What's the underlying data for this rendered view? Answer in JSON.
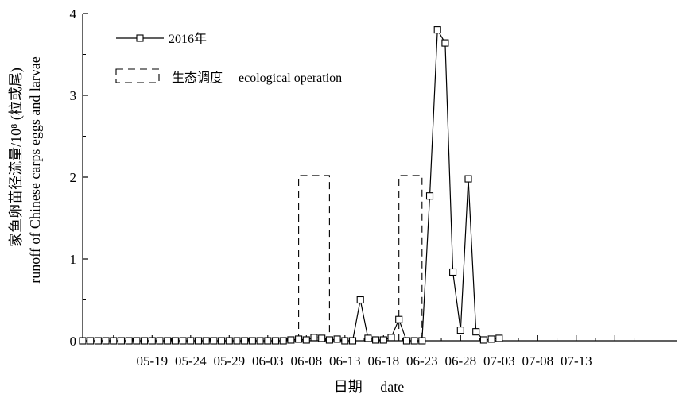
{
  "chart_data": {
    "type": "line",
    "x_tick_labels": [
      "05-19",
      "05-24",
      "05-29",
      "06-03",
      "06-08",
      "06-13",
      "06-18",
      "06-23",
      "06-28",
      "07-03",
      "07-08",
      "07-13"
    ],
    "xlabel": "日期  date",
    "ylabel_line1": "家鱼卵苗径流量/10⁸ (粒或尾)",
    "ylabel_line2": "runoff of Chinese carps eggs and larvae",
    "ylim": [
      0,
      4
    ],
    "y_ticks": [
      "0",
      "1",
      "2",
      "3",
      "4"
    ],
    "grid": false,
    "legend": {
      "position": "top-left",
      "series_label": "2016年",
      "operation_label": "生态调度  ecological operation"
    },
    "series": [
      {
        "name": "2016年",
        "marker": "square",
        "x": [
          "05-10",
          "05-11",
          "05-12",
          "05-13",
          "05-14",
          "05-15",
          "05-16",
          "05-17",
          "05-18",
          "05-19",
          "05-20",
          "05-21",
          "05-22",
          "05-23",
          "05-24",
          "05-25",
          "05-26",
          "05-27",
          "05-28",
          "05-29",
          "05-30",
          "05-31",
          "06-01",
          "06-02",
          "06-03",
          "06-04",
          "06-05",
          "06-06",
          "06-07",
          "06-08",
          "06-09",
          "06-10",
          "06-11",
          "06-12",
          "06-13",
          "06-14",
          "06-15",
          "06-16",
          "06-17",
          "06-18",
          "06-19",
          "06-20",
          "06-21",
          "06-22",
          "06-23",
          "06-24",
          "06-25",
          "06-26",
          "06-27",
          "06-28",
          "06-29",
          "06-30",
          "07-01",
          "07-02",
          "07-03",
          "07-04"
        ],
        "values": [
          0,
          0,
          0,
          0,
          0,
          0,
          0,
          0,
          0,
          0,
          0,
          0,
          0,
          0,
          0,
          0,
          0,
          0,
          0,
          0,
          0,
          0,
          0,
          0,
          0,
          0,
          0,
          0.01,
          0.02,
          0.01,
          0.04,
          0.03,
          0.01,
          0.02,
          0,
          0,
          0.5,
          0.03,
          0.01,
          0.01,
          0.04,
          0.26,
          0,
          0,
          0,
          1.77,
          3.8,
          3.64,
          0.84,
          0.13,
          1.98,
          0.11,
          0.01,
          0.02,
          0.03,
          null
        ]
      }
    ],
    "ecological_operations": [
      {
        "start": "06-07",
        "end": "06-11",
        "value": 2.02
      },
      {
        "start": "06-20",
        "end": "06-23",
        "value": 2.02
      }
    ]
  }
}
